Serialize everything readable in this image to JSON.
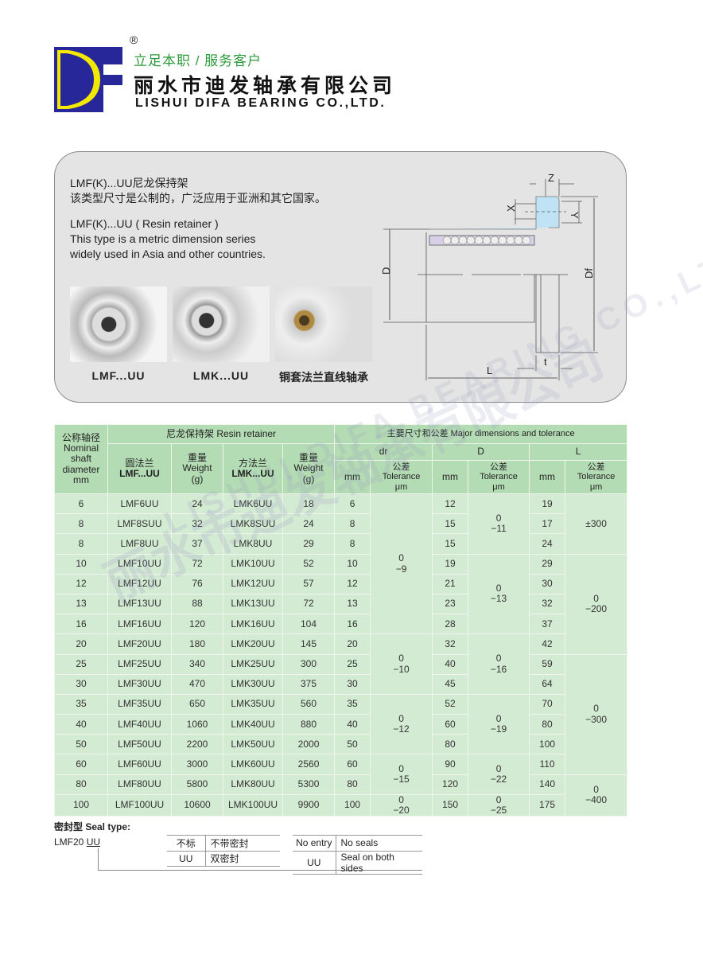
{
  "header": {
    "registered": "®",
    "slogan": "立足本职 / 服务客户",
    "company_cn": "丽水市迪发轴承有限公司",
    "company_en": "LISHUI DIFA BEARING CO.,LTD.",
    "logo_letters": "DF",
    "colors": {
      "logo_blue": "#27279a",
      "logo_yellow": "#f2e800",
      "slogan_green": "#2c9a3c"
    }
  },
  "watermark": {
    "cn": "丽水市迪发轴承有限公司",
    "en": "LISHUI DIFA BEARING CO.,LTD."
  },
  "intro": {
    "cn_title": "LMF(K)...UU尼龙保持架",
    "cn_desc": "该类型尺寸是公制的，广泛应用于亚洲和其它国家。",
    "en_title": "LMF(K)...UU ( Resin retainer )",
    "en_desc1": "This type is a metric dimension series",
    "en_desc2": "widely used in Asia and other countries."
  },
  "photos": [
    {
      "label": "LMF...UU"
    },
    {
      "label": "LMK...UU"
    },
    {
      "label": "铜套法兰直线轴承"
    }
  ],
  "diagram": {
    "labels": {
      "z": "Z",
      "x": "X",
      "y": "Y",
      "d": "D",
      "df": "Df",
      "l": "L",
      "t": "t"
    }
  },
  "table": {
    "headers": {
      "nominal": "公称轴径",
      "nominal_en": "Nominal shaft diameter",
      "nominal_unit": "mm",
      "resin": "尼龙保持架 Resin retainer",
      "major": "主要尺寸和公差 Major dimensions and tolerance",
      "round": "圆法兰",
      "lmf": "LMF...UU",
      "square": "方法兰",
      "lmk": "LMK...UU",
      "weight_cn": "重量",
      "weight_en": "Weight",
      "weight_unit": "(g)",
      "dr": "dr",
      "D": "D",
      "L": "L",
      "mm": "mm",
      "tol_cn": "公差",
      "tol_en": "Tolerance",
      "tol_unit": "μm"
    },
    "rows": [
      {
        "d": "6",
        "lmf": "LMF6UU",
        "wf": "24",
        "lmk": "LMK6UU",
        "wk": "18",
        "dr": "6",
        "D": "12",
        "L": "19"
      },
      {
        "d": "8",
        "lmf": "LMF8SUU",
        "wf": "32",
        "lmk": "LMK8SUU",
        "wk": "24",
        "dr": "8",
        "D": "15",
        "L": "17"
      },
      {
        "d": "8",
        "lmf": "LMF8UU",
        "wf": "37",
        "lmk": "LMK8UU",
        "wk": "29",
        "dr": "8",
        "D": "15",
        "L": "24"
      },
      {
        "d": "10",
        "lmf": "LMF10UU",
        "wf": "72",
        "lmk": "LMK10UU",
        "wk": "52",
        "dr": "10",
        "D": "19",
        "L": "29"
      },
      {
        "d": "12",
        "lmf": "LMF12UU",
        "wf": "76",
        "lmk": "LMK12UU",
        "wk": "57",
        "dr": "12",
        "D": "21",
        "L": "30"
      },
      {
        "d": "13",
        "lmf": "LMF13UU",
        "wf": "88",
        "lmk": "LMK13UU",
        "wk": "72",
        "dr": "13",
        "D": "23",
        "L": "32"
      },
      {
        "d": "16",
        "lmf": "LMF16UU",
        "wf": "120",
        "lmk": "LMK16UU",
        "wk": "104",
        "dr": "16",
        "D": "28",
        "L": "37"
      },
      {
        "d": "20",
        "lmf": "LMF20UU",
        "wf": "180",
        "lmk": "LMK20UU",
        "wk": "145",
        "dr": "20",
        "D": "32",
        "L": "42"
      },
      {
        "d": "25",
        "lmf": "LMF25UU",
        "wf": "340",
        "lmk": "LMK25UU",
        "wk": "300",
        "dr": "25",
        "D": "40",
        "L": "59"
      },
      {
        "d": "30",
        "lmf": "LMF30UU",
        "wf": "470",
        "lmk": "LMK30UU",
        "wk": "375",
        "dr": "30",
        "D": "45",
        "L": "64"
      },
      {
        "d": "35",
        "lmf": "LMF35UU",
        "wf": "650",
        "lmk": "LMK35UU",
        "wk": "560",
        "dr": "35",
        "D": "52",
        "L": "70"
      },
      {
        "d": "40",
        "lmf": "LMF40UU",
        "wf": "1060",
        "lmk": "LMK40UU",
        "wk": "880",
        "dr": "40",
        "D": "60",
        "L": "80"
      },
      {
        "d": "50",
        "lmf": "LMF50UU",
        "wf": "2200",
        "lmk": "LMK50UU",
        "wk": "2000",
        "dr": "50",
        "D": "80",
        "L": "100"
      },
      {
        "d": "60",
        "lmf": "LMF60UU",
        "wf": "3000",
        "lmk": "LMK60UU",
        "wk": "2560",
        "dr": "60",
        "D": "90",
        "L": "110"
      },
      {
        "d": "80",
        "lmf": "LMF80UU",
        "wf": "5800",
        "lmk": "LMK80UU",
        "wk": "5300",
        "dr": "80",
        "D": "120",
        "L": "140"
      },
      {
        "d": "100",
        "lmf": "LMF100UU",
        "wf": "10600",
        "lmk": "LMK100UU",
        "wk": "9900",
        "dr": "100",
        "D": "150",
        "L": "175"
      }
    ],
    "tol_dr": [
      {
        "start": 0,
        "span": 7,
        "upper": "0",
        "lower": "−9"
      },
      {
        "start": 7,
        "span": 3,
        "upper": "0",
        "lower": "−10"
      },
      {
        "start": 10,
        "span": 3,
        "upper": "0",
        "lower": "−12"
      },
      {
        "start": 13,
        "span": 2,
        "upper": "0",
        "lower": "−15"
      },
      {
        "start": 15,
        "span": 1,
        "upper": "0",
        "lower": "−20"
      }
    ],
    "tol_D": [
      {
        "start": 0,
        "span": 3,
        "upper": "0",
        "lower": "−11"
      },
      {
        "start": 3,
        "span": 4,
        "upper": "0",
        "lower": "−13"
      },
      {
        "start": 7,
        "span": 3,
        "upper": "0",
        "lower": "−16"
      },
      {
        "start": 10,
        "span": 3,
        "upper": "0",
        "lower": "−19"
      },
      {
        "start": 13,
        "span": 2,
        "upper": "0",
        "lower": "−22"
      },
      {
        "start": 15,
        "span": 1,
        "upper": "0",
        "lower": "−25"
      }
    ],
    "tol_L": [
      {
        "start": 0,
        "span": 3,
        "upper": "",
        "lower": "±300"
      },
      {
        "start": 3,
        "span": 5,
        "upper": "0",
        "lower": "−200"
      },
      {
        "start": 8,
        "span": 6,
        "upper": "0",
        "lower": "−300"
      },
      {
        "start": 14,
        "span": 2,
        "upper": "0",
        "lower": "−400"
      }
    ]
  },
  "seal": {
    "title": "密封型 Seal type:",
    "code_prefix": "LMF20",
    "code_suffix": "UU",
    "cn": [
      {
        "code": "不标",
        "desc": "不带密封"
      },
      {
        "code": "UU",
        "desc": "双密封"
      }
    ],
    "en": [
      {
        "code": "No entry",
        "desc": "No seals"
      },
      {
        "code": "UU",
        "desc": "Seal on both sides"
      }
    ]
  }
}
